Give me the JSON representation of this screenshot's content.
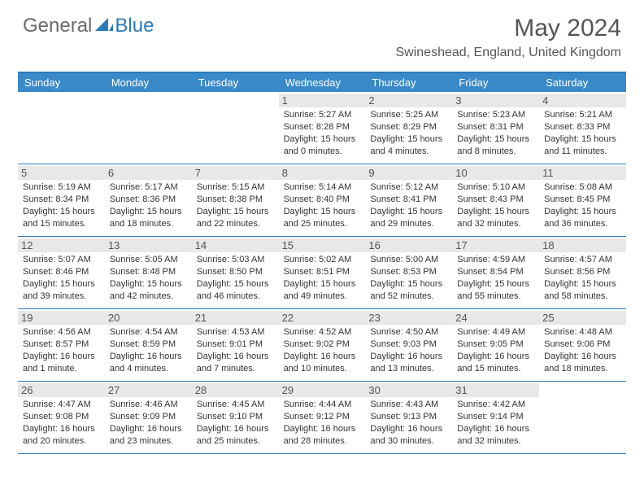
{
  "logo": {
    "general": "General",
    "blue": "Blue"
  },
  "title": "May 2024",
  "location": "Swineshead, England, United Kingdom",
  "day_names": [
    "Sunday",
    "Monday",
    "Tuesday",
    "Wednesday",
    "Thursday",
    "Friday",
    "Saturday"
  ],
  "colors": {
    "header_bar": "#3a8ac9",
    "accent": "#2a7ab9",
    "daynum_bg": "#e8e8e8",
    "text": "#333333",
    "muted": "#555555"
  },
  "weeks": [
    [
      {
        "blank": true
      },
      {
        "blank": true
      },
      {
        "blank": true
      },
      {
        "n": "1",
        "sr": "5:27 AM",
        "ss": "8:28 PM",
        "dl": "15 hours and 0 minutes."
      },
      {
        "n": "2",
        "sr": "5:25 AM",
        "ss": "8:29 PM",
        "dl": "15 hours and 4 minutes."
      },
      {
        "n": "3",
        "sr": "5:23 AM",
        "ss": "8:31 PM",
        "dl": "15 hours and 8 minutes."
      },
      {
        "n": "4",
        "sr": "5:21 AM",
        "ss": "8:33 PM",
        "dl": "15 hours and 11 minutes."
      }
    ],
    [
      {
        "n": "5",
        "sr": "5:19 AM",
        "ss": "8:34 PM",
        "dl": "15 hours and 15 minutes."
      },
      {
        "n": "6",
        "sr": "5:17 AM",
        "ss": "8:36 PM",
        "dl": "15 hours and 18 minutes."
      },
      {
        "n": "7",
        "sr": "5:15 AM",
        "ss": "8:38 PM",
        "dl": "15 hours and 22 minutes."
      },
      {
        "n": "8",
        "sr": "5:14 AM",
        "ss": "8:40 PM",
        "dl": "15 hours and 25 minutes."
      },
      {
        "n": "9",
        "sr": "5:12 AM",
        "ss": "8:41 PM",
        "dl": "15 hours and 29 minutes."
      },
      {
        "n": "10",
        "sr": "5:10 AM",
        "ss": "8:43 PM",
        "dl": "15 hours and 32 minutes."
      },
      {
        "n": "11",
        "sr": "5:08 AM",
        "ss": "8:45 PM",
        "dl": "15 hours and 36 minutes."
      }
    ],
    [
      {
        "n": "12",
        "sr": "5:07 AM",
        "ss": "8:46 PM",
        "dl": "15 hours and 39 minutes."
      },
      {
        "n": "13",
        "sr": "5:05 AM",
        "ss": "8:48 PM",
        "dl": "15 hours and 42 minutes."
      },
      {
        "n": "14",
        "sr": "5:03 AM",
        "ss": "8:50 PM",
        "dl": "15 hours and 46 minutes."
      },
      {
        "n": "15",
        "sr": "5:02 AM",
        "ss": "8:51 PM",
        "dl": "15 hours and 49 minutes."
      },
      {
        "n": "16",
        "sr": "5:00 AM",
        "ss": "8:53 PM",
        "dl": "15 hours and 52 minutes."
      },
      {
        "n": "17",
        "sr": "4:59 AM",
        "ss": "8:54 PM",
        "dl": "15 hours and 55 minutes."
      },
      {
        "n": "18",
        "sr": "4:57 AM",
        "ss": "8:56 PM",
        "dl": "15 hours and 58 minutes."
      }
    ],
    [
      {
        "n": "19",
        "sr": "4:56 AM",
        "ss": "8:57 PM",
        "dl": "16 hours and 1 minute."
      },
      {
        "n": "20",
        "sr": "4:54 AM",
        "ss": "8:59 PM",
        "dl": "16 hours and 4 minutes."
      },
      {
        "n": "21",
        "sr": "4:53 AM",
        "ss": "9:01 PM",
        "dl": "16 hours and 7 minutes."
      },
      {
        "n": "22",
        "sr": "4:52 AM",
        "ss": "9:02 PM",
        "dl": "16 hours and 10 minutes."
      },
      {
        "n": "23",
        "sr": "4:50 AM",
        "ss": "9:03 PM",
        "dl": "16 hours and 13 minutes."
      },
      {
        "n": "24",
        "sr": "4:49 AM",
        "ss": "9:05 PM",
        "dl": "16 hours and 15 minutes."
      },
      {
        "n": "25",
        "sr": "4:48 AM",
        "ss": "9:06 PM",
        "dl": "16 hours and 18 minutes."
      }
    ],
    [
      {
        "n": "26",
        "sr": "4:47 AM",
        "ss": "9:08 PM",
        "dl": "16 hours and 20 minutes."
      },
      {
        "n": "27",
        "sr": "4:46 AM",
        "ss": "9:09 PM",
        "dl": "16 hours and 23 minutes."
      },
      {
        "n": "28",
        "sr": "4:45 AM",
        "ss": "9:10 PM",
        "dl": "16 hours and 25 minutes."
      },
      {
        "n": "29",
        "sr": "4:44 AM",
        "ss": "9:12 PM",
        "dl": "16 hours and 28 minutes."
      },
      {
        "n": "30",
        "sr": "4:43 AM",
        "ss": "9:13 PM",
        "dl": "16 hours and 30 minutes."
      },
      {
        "n": "31",
        "sr": "4:42 AM",
        "ss": "9:14 PM",
        "dl": "16 hours and 32 minutes."
      },
      {
        "blank": true
      }
    ]
  ],
  "labels": {
    "sunrise": "Sunrise:",
    "sunset": "Sunset:",
    "daylight": "Daylight:"
  }
}
